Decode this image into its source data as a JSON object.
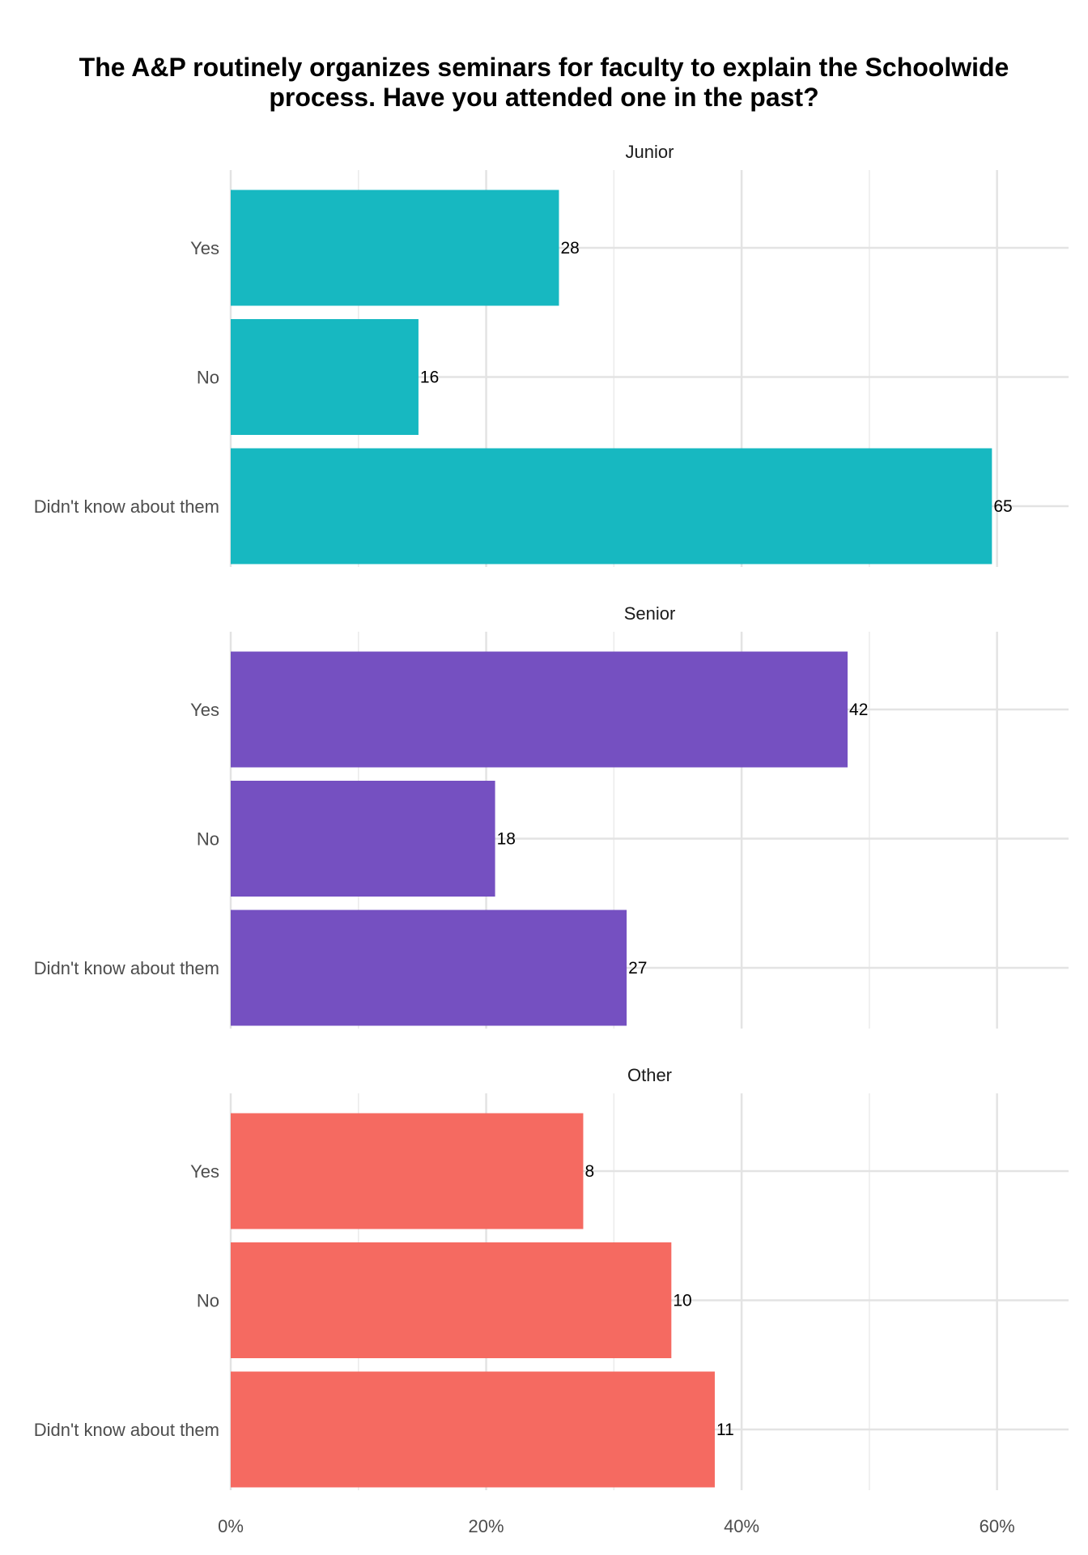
{
  "chart_data": {
    "type": "bar",
    "orientation": "horizontal",
    "title": "The A&P routinely organizes seminars for faculty to explain the Schoolwide process. Have you attended one in the past?",
    "title_lines": [
      "The A&P routinely organizes seminars for faculty to explain the Schoolwide",
      "process. Have you attended one in the past?"
    ],
    "categories": [
      "Yes",
      "No",
      "Didn't know about them"
    ],
    "x_ticks": [
      "0%",
      "20%",
      "40%",
      "60%"
    ],
    "x_tick_values": [
      0,
      20,
      40,
      60
    ],
    "xlim": [
      0,
      65.6
    ],
    "grid": true,
    "legend": "none",
    "facets": [
      {
        "name": "Junior",
        "color": "#17b8c1",
        "counts": [
          28,
          16,
          65
        ],
        "percent": [
          25.7,
          14.7,
          59.6
        ]
      },
      {
        "name": "Senior",
        "color": "#7550c1",
        "counts": [
          42,
          18,
          27
        ],
        "percent": [
          48.3,
          20.7,
          31.0
        ]
      },
      {
        "name": "Other",
        "color": "#f56a61",
        "counts": [
          8,
          10,
          11
        ],
        "percent": [
          27.6,
          34.5,
          37.9
        ]
      }
    ]
  }
}
